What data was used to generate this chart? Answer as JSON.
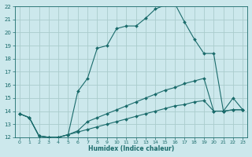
{
  "xlabel": "Humidex (Indice chaleur)",
  "background_color": "#cce8ec",
  "grid_color": "#aacccc",
  "line_color": "#1a6b6b",
  "xlim": [
    -0.5,
    23.5
  ],
  "ylim": [
    12,
    22
  ],
  "yticks": [
    12,
    13,
    14,
    15,
    16,
    17,
    18,
    19,
    20,
    21,
    22
  ],
  "xticks": [
    0,
    1,
    2,
    3,
    4,
    5,
    6,
    7,
    8,
    9,
    10,
    11,
    12,
    13,
    14,
    15,
    16,
    17,
    18,
    19,
    20,
    21,
    22,
    23
  ],
  "series1_x": [
    0,
    1,
    2,
    3,
    4,
    5,
    6,
    7,
    8,
    9,
    10,
    11,
    12,
    13,
    14,
    15,
    16,
    17,
    18,
    19,
    20,
    21,
    22,
    23
  ],
  "series1_y": [
    13.8,
    13.5,
    12.1,
    12.0,
    12.0,
    12.2,
    15.5,
    16.5,
    18.8,
    19.0,
    20.3,
    20.5,
    20.5,
    21.1,
    21.8,
    22.1,
    22.2,
    20.8,
    19.5,
    18.4,
    18.4,
    14.0,
    15.0,
    14.1
  ],
  "series2_x": [
    0,
    1,
    2,
    3,
    4,
    5,
    6,
    7,
    8,
    9,
    10,
    11,
    12,
    13,
    14,
    15,
    16,
    17,
    18,
    19,
    20,
    21,
    22,
    23
  ],
  "series2_y": [
    13.8,
    13.5,
    12.1,
    12.0,
    12.0,
    12.2,
    12.5,
    13.2,
    13.5,
    13.8,
    14.1,
    14.4,
    14.7,
    15.0,
    15.3,
    15.6,
    15.8,
    16.1,
    16.3,
    16.5,
    14.0,
    14.0,
    14.1,
    14.1
  ],
  "series3_x": [
    0,
    1,
    2,
    3,
    4,
    5,
    6,
    7,
    8,
    9,
    10,
    11,
    12,
    13,
    14,
    15,
    16,
    17,
    18,
    19,
    20,
    21,
    22,
    23
  ],
  "series3_y": [
    13.8,
    13.5,
    12.1,
    12.0,
    12.0,
    12.2,
    12.4,
    12.6,
    12.8,
    13.0,
    13.2,
    13.4,
    13.6,
    13.8,
    14.0,
    14.2,
    14.4,
    14.5,
    14.7,
    14.8,
    14.0,
    14.0,
    14.1,
    14.1
  ]
}
